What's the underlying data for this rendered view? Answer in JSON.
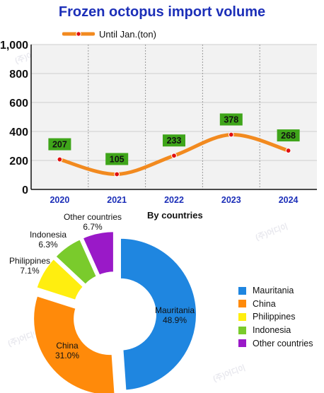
{
  "title": "Frozen octopus import volume",
  "line_legend": "Until Jan.(ton)",
  "colors": {
    "title": "#1c2fb8",
    "line": "#f28a1f",
    "label_bg": "#3fa51a",
    "axis_tick": "#1c2fb8",
    "plot_bg": "#f2f2f2"
  },
  "chart_data": [
    {
      "type": "line",
      "title": "Frozen octopus import volume",
      "x": [
        "2020",
        "2021",
        "2022",
        "2023",
        "2024"
      ],
      "series": [
        {
          "name": "Until Jan.(ton)",
          "values": [
            207,
            105,
            233,
            378,
            268
          ]
        }
      ],
      "yticks": [
        "0",
        "200",
        "400",
        "600",
        "800",
        "1,000"
      ],
      "ylim": [
        0,
        1000
      ],
      "grid": true,
      "legend": "top-left"
    },
    {
      "type": "pie",
      "title": "By countries",
      "slices": [
        {
          "label": "Mauritania",
          "pct_label": "48.9%",
          "value": 48.9,
          "color": "#1f86e0"
        },
        {
          "label": "China",
          "pct_label": "31.0%",
          "value": 31.0,
          "color": "#ff8a0a"
        },
        {
          "label": "Philippines",
          "pct_label": "7.1%",
          "value": 7.1,
          "color": "#ffee0f"
        },
        {
          "label": "Indonesia",
          "pct_label": "6.3%",
          "value": 6.3,
          "color": "#7acb2c"
        },
        {
          "label": "Other countries",
          "pct_label": "6.7%",
          "value": 6.7,
          "color": "#9a19c8"
        }
      ],
      "legend": "right"
    }
  ]
}
